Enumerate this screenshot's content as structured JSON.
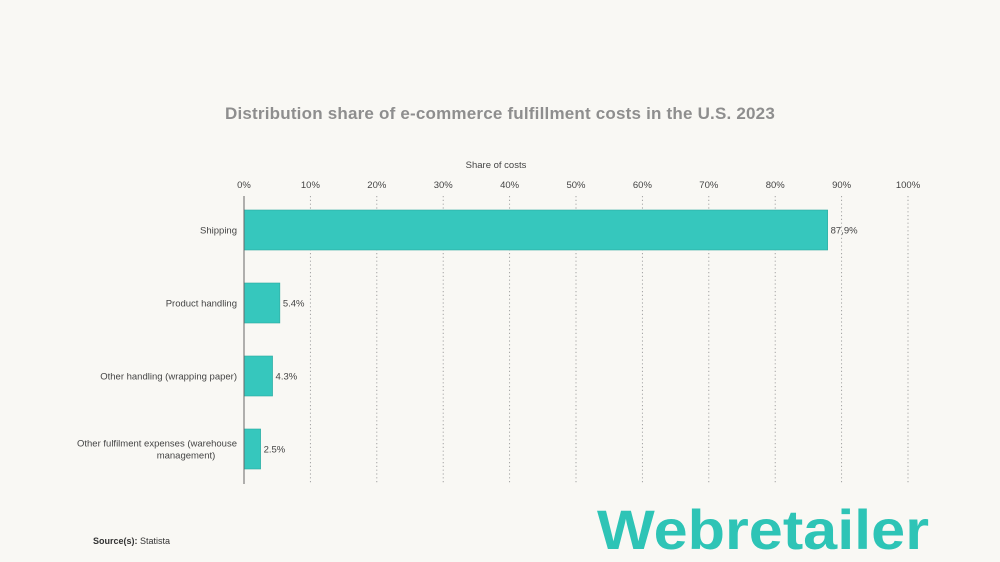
{
  "chart_data": {
    "type": "bar",
    "orientation": "horizontal",
    "title": "Distribution share of e-commerce fulfillment costs in the U.S. 2023",
    "xlabel": "Share of costs",
    "ylabel": "",
    "xlim": [
      0,
      100
    ],
    "x_ticks": [
      "0%",
      "10%",
      "20%",
      "30%",
      "40%",
      "50%",
      "60%",
      "70%",
      "80%",
      "90%",
      "100%"
    ],
    "categories": [
      [
        "Shipping"
      ],
      [
        "Product handling"
      ],
      [
        "Other handling (wrapping paper)"
      ],
      [
        "Other fulfilment expenses (warehouse",
        "management)"
      ]
    ],
    "values": [
      87.9,
      5.4,
      4.3,
      2.5
    ],
    "value_labels": [
      "87,9%",
      "5.4%",
      "4.3%",
      "2.5%"
    ],
    "grid": true,
    "bar_color": "#36c7bd",
    "axis_position": "top"
  },
  "source": {
    "label": "Source(s):",
    "value": "Statista"
  },
  "logo": {
    "text": "Webretailer",
    "color": "#2ec4b6"
  }
}
